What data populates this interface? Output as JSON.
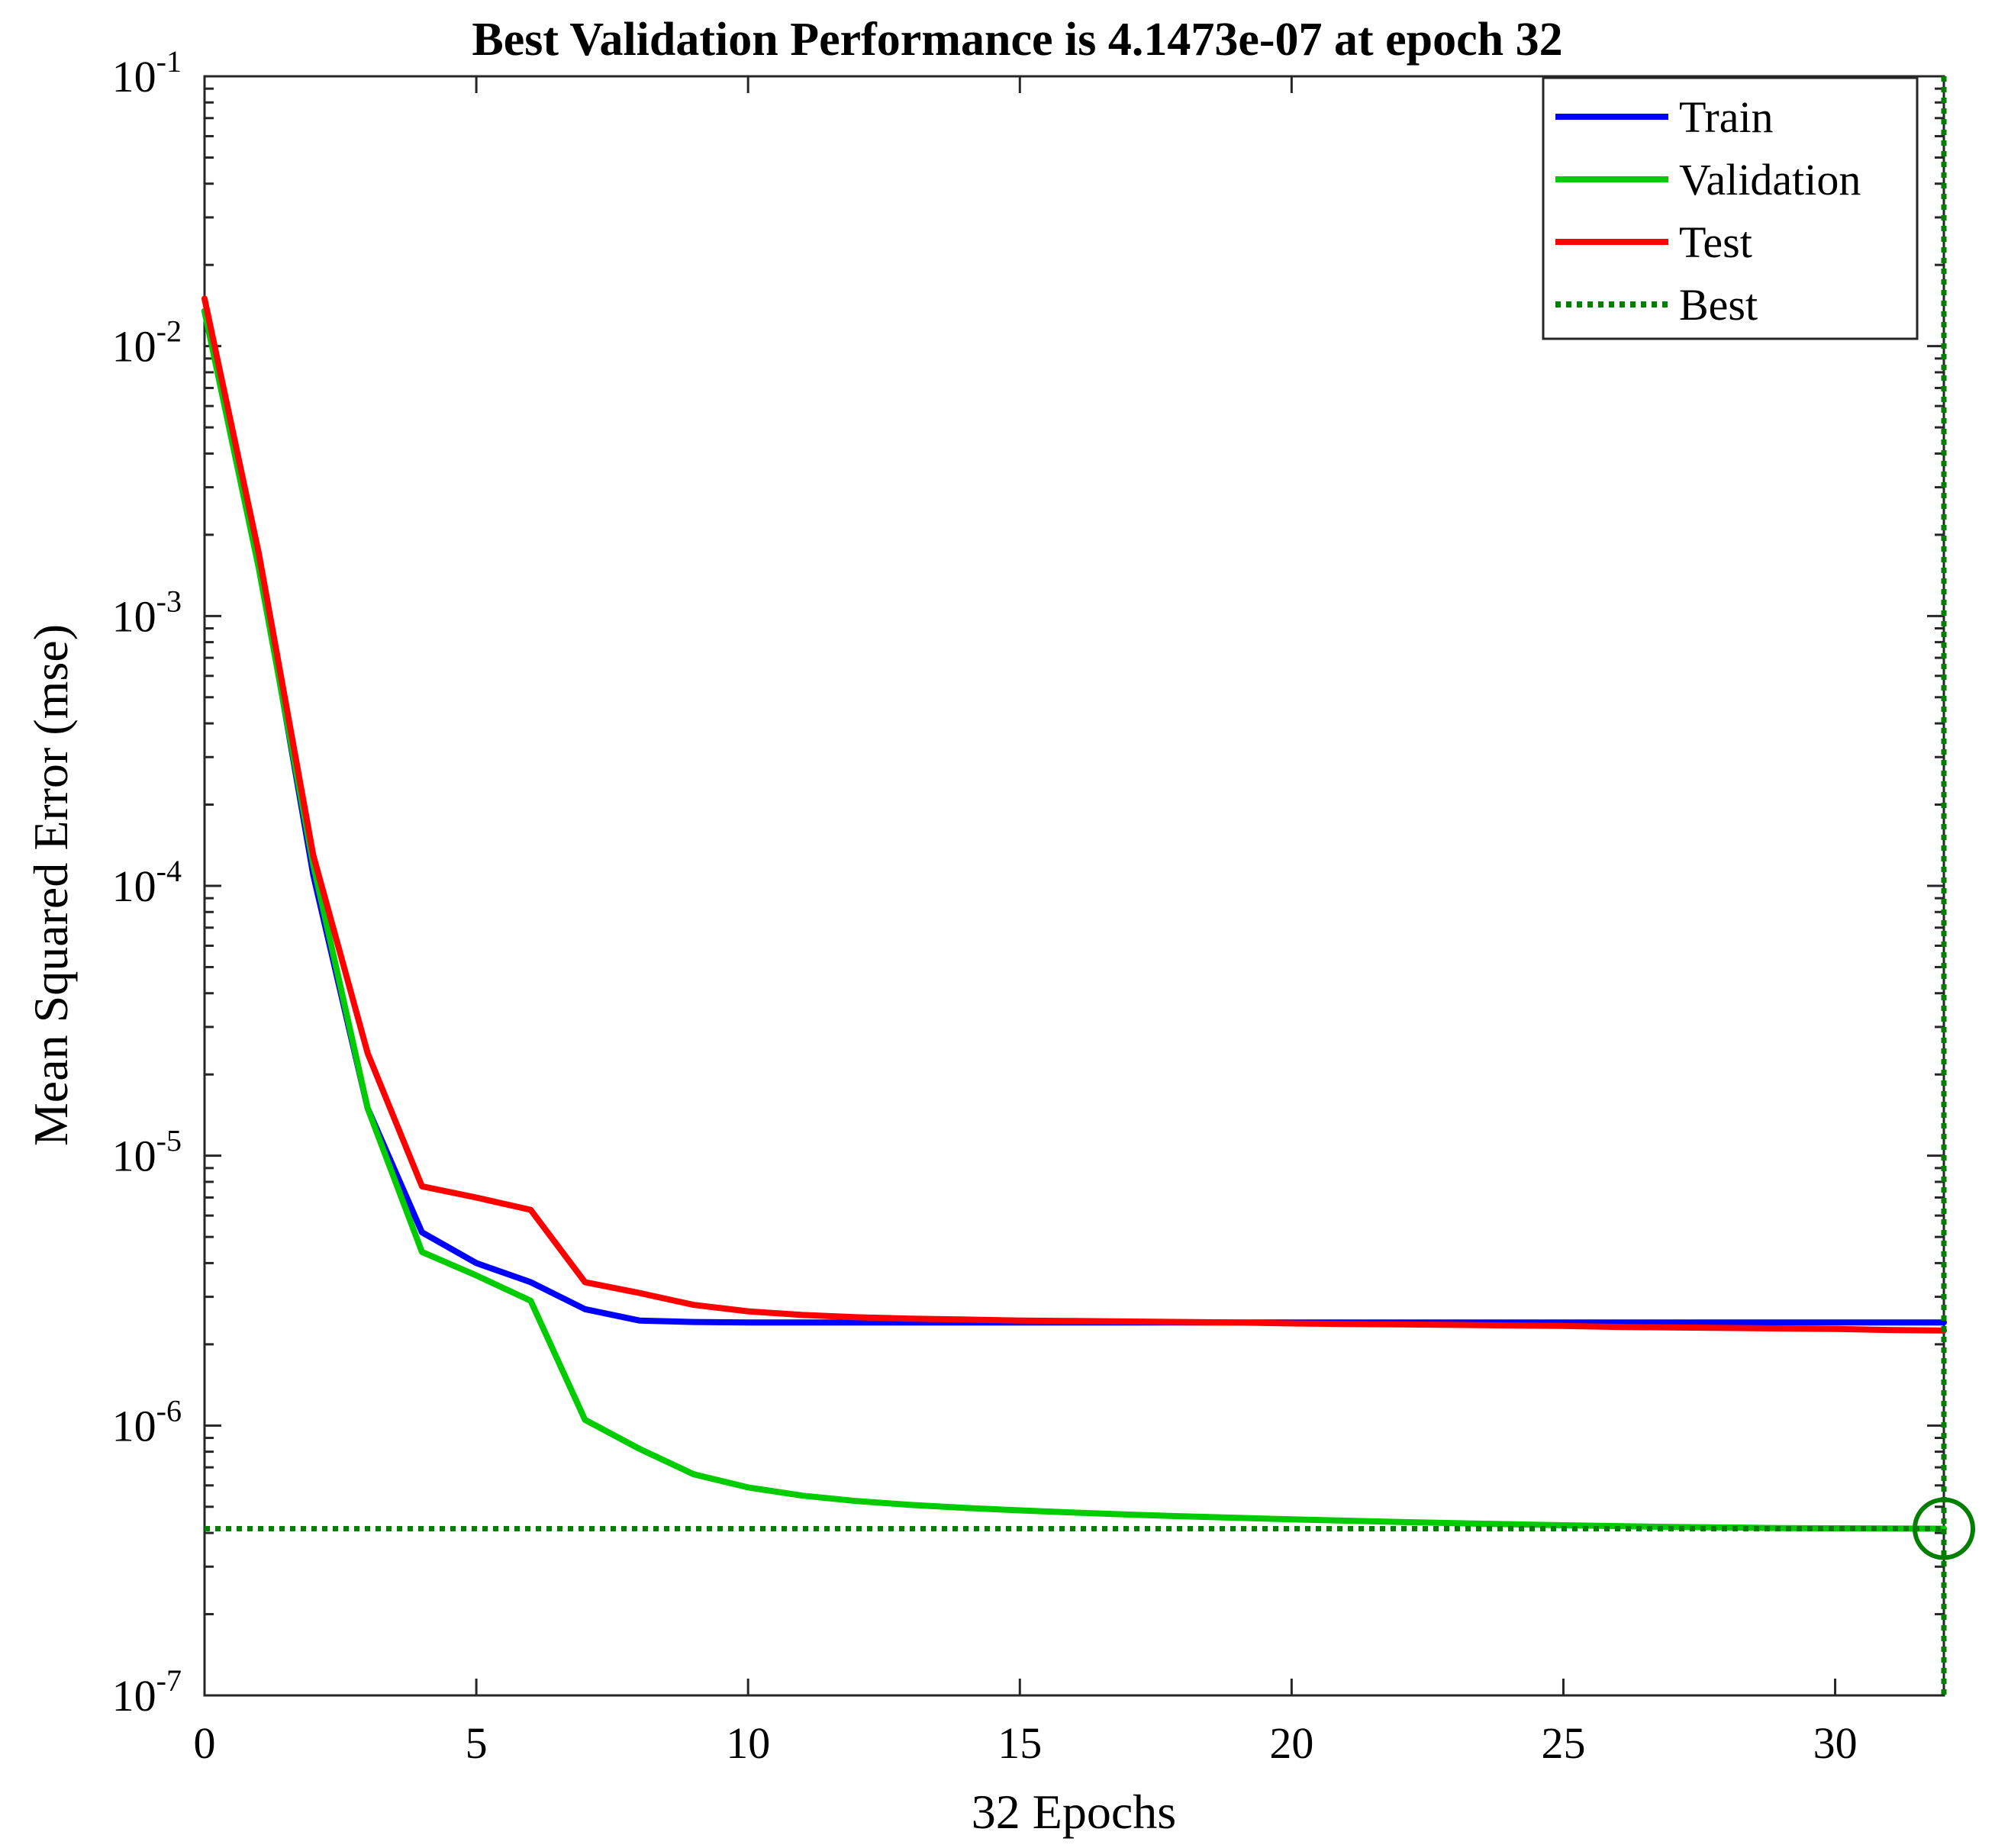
{
  "chart_data": {
    "type": "line",
    "title": "Best Validation Performance is 4.1473e-07 at epoch 32",
    "xlabel": "32 Epochs",
    "ylabel": "Mean Squared Error  (mse)",
    "xlim": [
      0,
      32
    ],
    "ylim": [
      1e-07,
      0.1
    ],
    "yscale": "log",
    "xticks": [
      0,
      5,
      10,
      15,
      20,
      25,
      30
    ],
    "yticks": [
      {
        "value": 1e-07,
        "base": "10",
        "exp": "-7"
      },
      {
        "value": 1e-06,
        "base": "10",
        "exp": "-6"
      },
      {
        "value": 1e-05,
        "base": "10",
        "exp": "-5"
      },
      {
        "value": 0.0001,
        "base": "10",
        "exp": "-4"
      },
      {
        "value": 0.001,
        "base": "10",
        "exp": "-3"
      },
      {
        "value": 0.01,
        "base": "10",
        "exp": "-2"
      },
      {
        "value": 0.1,
        "base": "10",
        "exp": "-1"
      }
    ],
    "x": [
      0,
      1,
      2,
      3,
      4,
      5,
      6,
      7,
      8,
      9,
      10,
      11,
      12,
      13,
      14,
      15,
      16,
      17,
      18,
      19,
      20,
      21,
      22,
      23,
      24,
      25,
      26,
      27,
      28,
      29,
      30,
      31,
      32
    ],
    "series": [
      {
        "name": "Train",
        "color": "#0000ff",
        "values": [
          0.0135,
          0.0016,
          0.00011,
          1.5e-05,
          5.2e-06,
          4e-06,
          3.4e-06,
          2.7e-06,
          2.45e-06,
          2.42e-06,
          2.41e-06,
          2.41e-06,
          2.41e-06,
          2.41e-06,
          2.41e-06,
          2.41e-06,
          2.41e-06,
          2.41e-06,
          2.41e-06,
          2.41e-06,
          2.41e-06,
          2.41e-06,
          2.41e-06,
          2.41e-06,
          2.41e-06,
          2.41e-06,
          2.41e-06,
          2.41e-06,
          2.41e-06,
          2.41e-06,
          2.41e-06,
          2.41e-06,
          2.41e-06
        ]
      },
      {
        "name": "Validation",
        "color": "#00cc00",
        "values": [
          0.0135,
          0.0015,
          0.00012,
          1.5e-05,
          4.4e-06,
          3.6e-06,
          2.9e-06,
          1.05e-06,
          8.2e-07,
          6.6e-07,
          5.9e-07,
          5.5e-07,
          5.25e-07,
          5.08e-07,
          4.95e-07,
          4.85e-07,
          4.76e-07,
          4.68e-07,
          4.61e-07,
          4.55e-07,
          4.49e-07,
          4.44e-07,
          4.39e-07,
          4.35e-07,
          4.31e-07,
          4.27e-07,
          4.24e-07,
          4.21e-07,
          4.19e-07,
          4.17e-07,
          4.16e-07,
          4.155e-07,
          4.1473e-07
        ]
      },
      {
        "name": "Test",
        "color": "#ff0000",
        "values": [
          0.015,
          0.0017,
          0.00013,
          2.4e-05,
          7.7e-06,
          7e-06,
          6.3e-06,
          3.4e-06,
          3.1e-06,
          2.8e-06,
          2.65e-06,
          2.57e-06,
          2.52e-06,
          2.49e-06,
          2.47e-06,
          2.45e-06,
          2.44e-06,
          2.43e-06,
          2.42e-06,
          2.41e-06,
          2.39e-06,
          2.38e-06,
          2.37e-06,
          2.36e-06,
          2.35e-06,
          2.34e-06,
          2.32e-06,
          2.31e-06,
          2.3e-06,
          2.29e-06,
          2.28e-06,
          2.26e-06,
          2.25e-06
        ]
      }
    ],
    "best": {
      "name": "Best",
      "color": "#007f00",
      "epoch": 32,
      "value": 4.1473e-07
    },
    "legend": {
      "position": "top-right",
      "entries": [
        "Train",
        "Validation",
        "Test",
        "Best"
      ]
    }
  }
}
